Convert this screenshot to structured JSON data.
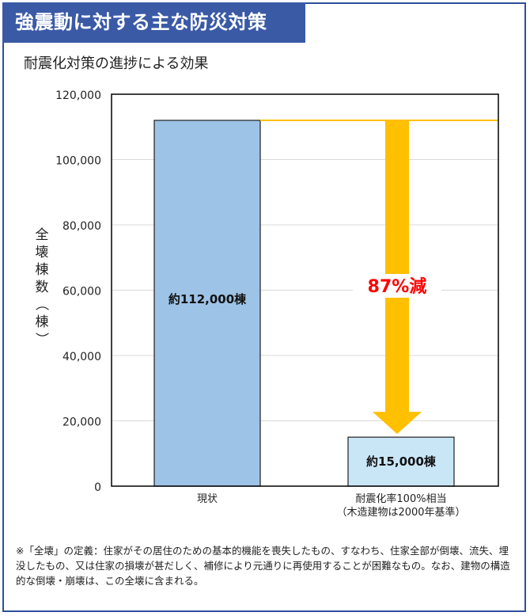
{
  "header": {
    "title": "強震動に対する主な防災対策",
    "subtitle": "耐震化対策の進捗による効果"
  },
  "chart_data": {
    "type": "bar",
    "title": "耐震化対策の進捗による効果",
    "ylabel": "全壊棟数（棟）",
    "ylim": [
      0,
      120000
    ],
    "yticks": [
      0,
      20000,
      40000,
      60000,
      80000,
      100000,
      120000
    ],
    "ytick_labels": [
      "0",
      "20,000",
      "40,000",
      "60,000",
      "80,000",
      "100,000",
      "120,000"
    ],
    "categories": [
      "現状",
      "耐震化率100%相当"
    ],
    "category_sublabels": [
      "",
      "（木造建物は2000年基準）"
    ],
    "values": [
      112000,
      15000
    ],
    "data_labels": [
      "約112,000棟",
      "約15,000棟"
    ],
    "bar_colors": [
      "#9dc3e6",
      "#c9e6f7"
    ],
    "annotation": "87%減",
    "arrow_color": "#ffc000",
    "annotation_color": "#ff0000"
  },
  "footnote": "※「全壊」の定義：住家がその居住のための基本的機能を喪失したもの、すなわち、住家全部が倒壊、流失、埋没したもの、又は住家の損壊が甚だしく、補修により元通りに再使用することが困難なもの。なお、建物の構造的な倒壊・崩壊は、この全壊に含まれる。"
}
